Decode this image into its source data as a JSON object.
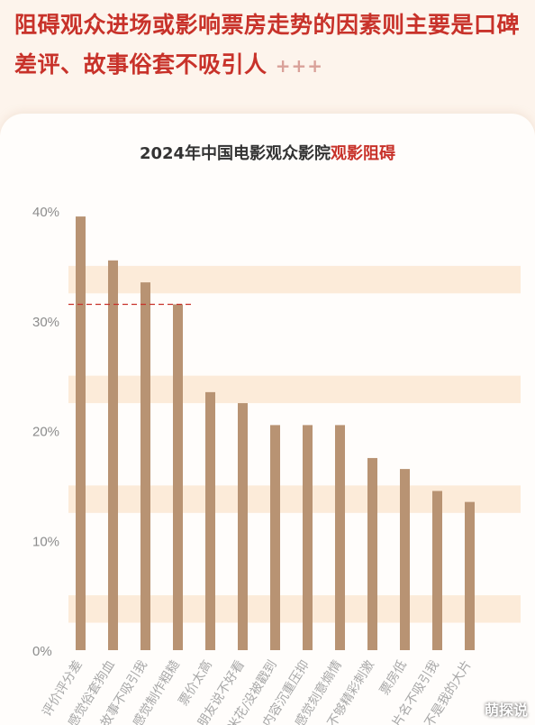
{
  "headline": {
    "text": "阻碍观众进场或影响票房走势的因素则主要是口碑差评、故事俗套不吸引人",
    "decoration": "+++"
  },
  "chart_data": {
    "type": "bar",
    "title_prefix": "2024年中国电影观众影院",
    "title_accent": "观影阻碍",
    "categories": [
      "评价评分差",
      "感觉俗套狗血",
      "故事不吸引我",
      "感觉制作粗糙",
      "票价太高",
      "朋友说不好看",
      "爆米花/没被戳到",
      "内容沉重压抑",
      "感觉刻意煽情",
      "不够精彩刺激",
      "票房低",
      "片名不吸引我",
      "不是我的大片"
    ],
    "values": [
      39.5,
      35.5,
      33.5,
      31.5,
      23.5,
      22.5,
      20.5,
      20.5,
      20.5,
      17.5,
      16.5,
      14.5,
      13.5
    ],
    "yticks": [
      "0%",
      "10%",
      "20%",
      "30%",
      "40%"
    ],
    "ylim": [
      0,
      40
    ],
    "reference_line": 31.5,
    "bar_color": "#b89373",
    "band_color": "#fcebd9",
    "reference_color": "#c8322a",
    "accent_color": "#c8322a"
  },
  "watermark": "萌探说"
}
